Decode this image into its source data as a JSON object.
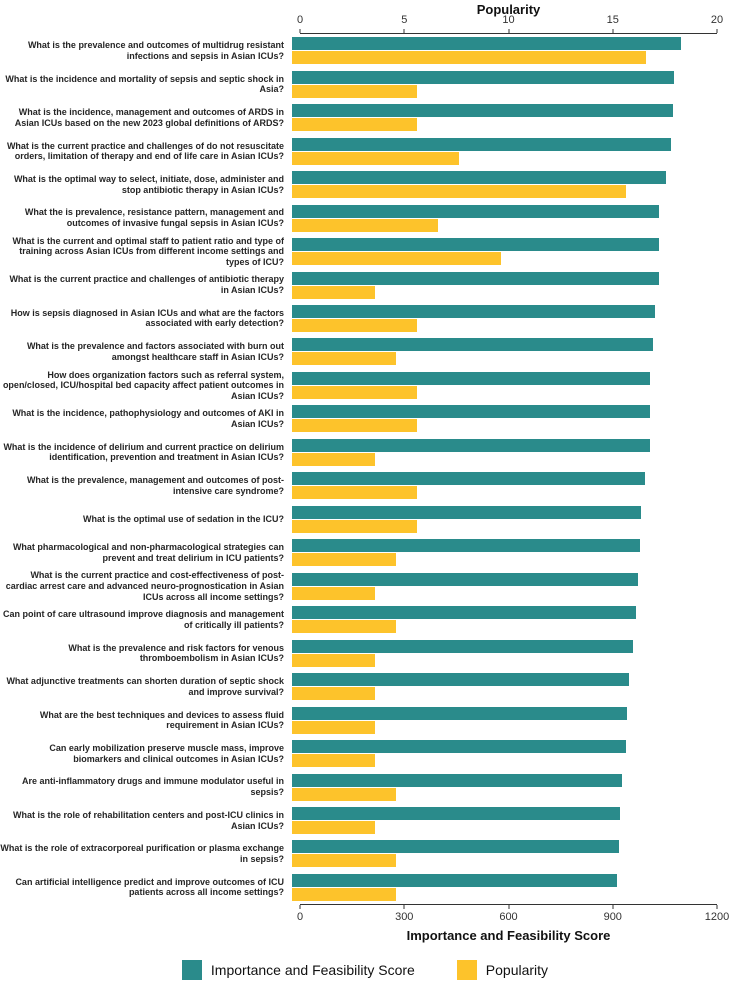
{
  "chart_data": {
    "type": "bar",
    "orientation": "horizontal",
    "grid": false,
    "legend_position": "bottom",
    "top_axis": {
      "label": "Popularity",
      "ticks": [
        0,
        5,
        10,
        15,
        20
      ],
      "max": 20
    },
    "bottom_axis": {
      "label": "Importance and Feasibility Score",
      "ticks": [
        0,
        300,
        600,
        900,
        1200
      ],
      "max": 1200
    },
    "categories": [
      "What is the prevalence and outcomes of multidrug resistant infections and sepsis in Asian ICUs?",
      "What is the incidence and mortality of sepsis and septic shock in Asia?",
      "What is the incidence, management and outcomes of ARDS in Asian ICUs based on the new 2023 global definitions of ARDS?",
      "What is the current practice and challenges of do not resuscitate orders, limitation of therapy and end of life care in Asian ICUs?",
      "What is the optimal way to select, initiate, dose, administer and stop antibiotic therapy in Asian ICUs?",
      "What the is prevalence, resistance pattern, management and outcomes of invasive fungal sepsis in Asian ICUs?",
      "What is the current and optimal staff to patient ratio and type of training across Asian ICUs from different income settings and types of ICU?",
      "What is the current practice and challenges of antibiotic therapy in Asian ICUs?",
      "How is sepsis diagnosed in Asian ICUs and what are the factors associated with early detection?",
      "What is the prevalence and factors associated with burn out amongst healthcare staff in Asian ICUs?",
      "How does organization factors such as referral system, open/closed, ICU/hospital bed capacity affect patient outcomes in Asian ICUs?",
      "What is the incidence, pathophysiology and outcomes of AKI in Asian ICUs?",
      "What is the incidence of delirium and current practice on delirium identification, prevention and treatment in Asian ICUs?",
      "What is the prevalence, management and outcomes of post-intensive care syndrome?",
      "What is the optimal use of sedation in the ICU?",
      "What pharmacological and non-pharmacological strategies can prevent and treat delirium in ICU patients?",
      "What is the current practice and cost-effectiveness of post-cardiac arrest care and advanced neuro-prognostication in Asian ICUs across all income settings?",
      "Can point of care ultrasound improve diagnosis and management of critically ill patients?",
      "What is the prevalence and risk factors for venous thromboembolism in Asian ICUs?",
      "What adjunctive treatments can shorten duration of septic shock and improve survival?",
      "What are the best techniques and devices to assess fluid requirement in Asian ICUs?",
      "Can early mobilization preserve muscle mass, improve biomarkers and clinical outcomes in Asian ICUs?",
      "Are anti-inflammatory drugs and immune modulator useful in sepsis?",
      "What is the role of rehabilitation centers and post-ICU clinics in Asian ICUs?",
      "What is the role of extracorporeal purification or plasma exchange in sepsis?",
      "Can artificial intelligence predict and improve outcomes of ICU patients across all income settings?"
    ],
    "series": [
      {
        "name": "Importance and Feasibility Score",
        "axis": "bottom",
        "color": "#2a8b8b",
        "values": [
          1120,
          1100,
          1095,
          1090,
          1075,
          1055,
          1055,
          1055,
          1045,
          1040,
          1030,
          1030,
          1030,
          1015,
          1005,
          1000,
          995,
          990,
          980,
          970,
          965,
          960,
          950,
          945,
          940,
          935
        ]
      },
      {
        "name": "Popularity",
        "axis": "top",
        "color": "#fdc32b",
        "values": [
          17,
          6,
          6,
          8,
          16,
          7,
          10,
          4,
          6,
          5,
          6,
          6,
          4,
          6,
          6,
          5,
          4,
          5,
          4,
          4,
          4,
          4,
          5,
          4,
          5,
          5
        ]
      }
    ]
  },
  "legend": {
    "items": [
      {
        "label": "Importance and Feasibility Score",
        "color": "#2a8b8b"
      },
      {
        "label": "Popularity",
        "color": "#fdc32b"
      }
    ]
  }
}
